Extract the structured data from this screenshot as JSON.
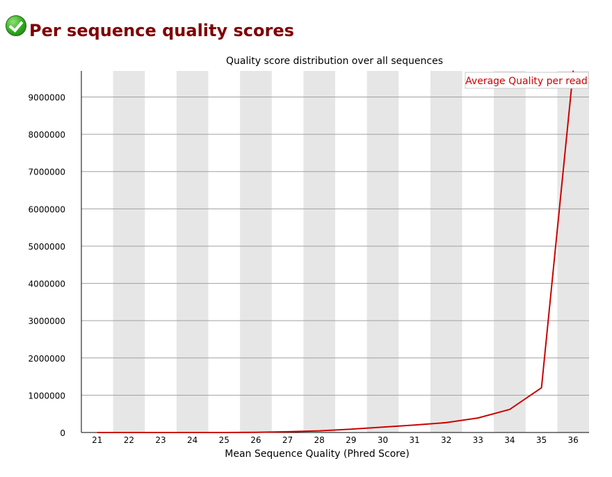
{
  "header": {
    "title": "Per sequence quality scores",
    "status_icon": "check-pass-icon"
  },
  "chart_data": {
    "type": "line",
    "title": "Quality score distribution over all sequences",
    "xlabel": "Mean Sequence Quality (Phred Score)",
    "ylabel": "",
    "categories": [
      21,
      22,
      23,
      24,
      25,
      26,
      27,
      28,
      29,
      30,
      31,
      32,
      33,
      34,
      35,
      36
    ],
    "ylim": [
      0,
      9700000
    ],
    "yticks": [
      0,
      1000000,
      2000000,
      3000000,
      4000000,
      5000000,
      6000000,
      7000000,
      8000000,
      9000000
    ],
    "series": [
      {
        "name": "Average Quality per read",
        "color": "#cc0000",
        "values": [
          0,
          0,
          0,
          0,
          0,
          5000,
          20000,
          45000,
          90000,
          145000,
          200000,
          265000,
          390000,
          620000,
          1200000,
          9700000
        ]
      }
    ],
    "legend_position": "top-right",
    "band_color": "#e6e6e6",
    "grid": true
  }
}
